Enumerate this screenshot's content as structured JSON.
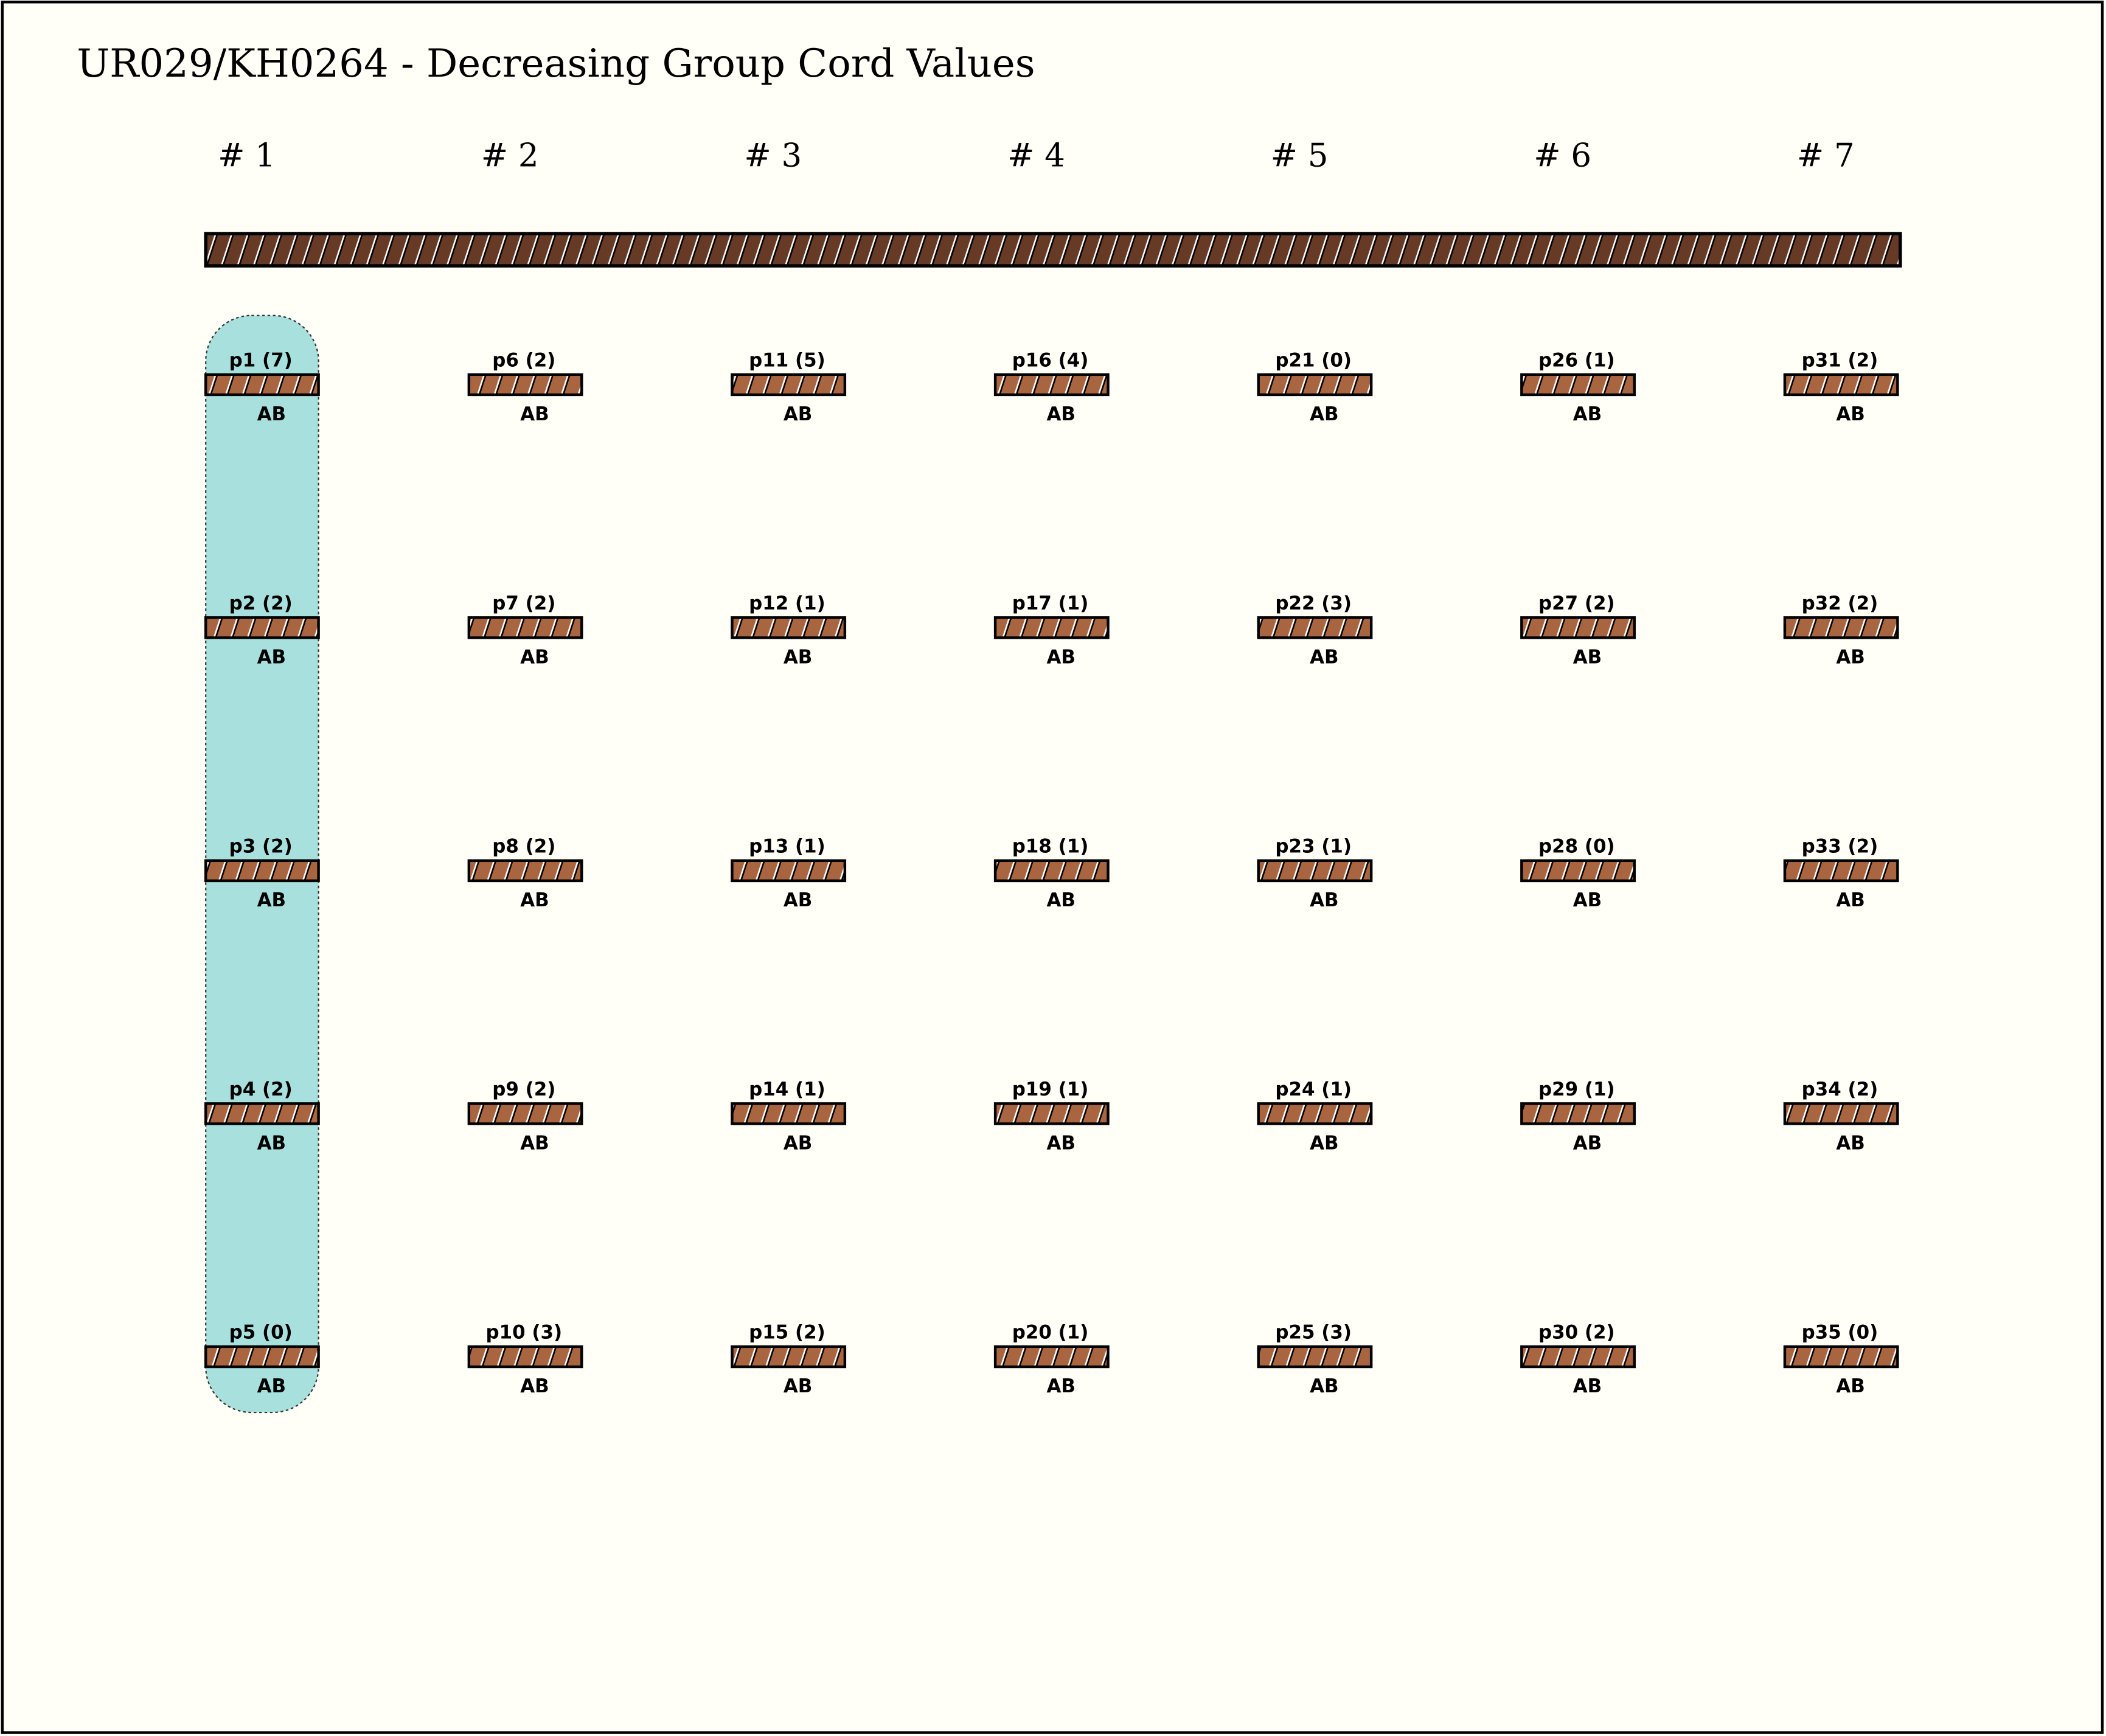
{
  "title": "UR029/KH0264 - Decreasing Group Cord Values",
  "colors": {
    "background": "#fffef7",
    "main_cord": "#663a24",
    "pendant_cord": "#a9653f",
    "highlight": "#a8e0de"
  },
  "highlighted_group": 1,
  "groups": [
    {
      "label": "# 1",
      "pendants": [
        {
          "name": "p1 (7)",
          "knot": "AB"
        },
        {
          "name": "p2 (2)",
          "knot": "AB"
        },
        {
          "name": "p3 (2)",
          "knot": "AB"
        },
        {
          "name": "p4 (2)",
          "knot": "AB"
        },
        {
          "name": "p5 (0)",
          "knot": "AB"
        }
      ]
    },
    {
      "label": "# 2",
      "pendants": [
        {
          "name": "p6 (2)",
          "knot": "AB"
        },
        {
          "name": "p7 (2)",
          "knot": "AB"
        },
        {
          "name": "p8 (2)",
          "knot": "AB"
        },
        {
          "name": "p9 (2)",
          "knot": "AB"
        },
        {
          "name": "p10 (3)",
          "knot": "AB"
        }
      ]
    },
    {
      "label": "# 3",
      "pendants": [
        {
          "name": "p11 (5)",
          "knot": "AB"
        },
        {
          "name": "p12 (1)",
          "knot": "AB"
        },
        {
          "name": "p13 (1)",
          "knot": "AB"
        },
        {
          "name": "p14 (1)",
          "knot": "AB"
        },
        {
          "name": "p15 (2)",
          "knot": "AB"
        }
      ]
    },
    {
      "label": "# 4",
      "pendants": [
        {
          "name": "p16 (4)",
          "knot": "AB"
        },
        {
          "name": "p17 (1)",
          "knot": "AB"
        },
        {
          "name": "p18 (1)",
          "knot": "AB"
        },
        {
          "name": "p19 (1)",
          "knot": "AB"
        },
        {
          "name": "p20 (1)",
          "knot": "AB"
        }
      ]
    },
    {
      "label": "# 5",
      "pendants": [
        {
          "name": "p21 (0)",
          "knot": "AB"
        },
        {
          "name": "p22 (3)",
          "knot": "AB"
        },
        {
          "name": "p23 (1)",
          "knot": "AB"
        },
        {
          "name": "p24 (1)",
          "knot": "AB"
        },
        {
          "name": "p25 (3)",
          "knot": "AB"
        }
      ]
    },
    {
      "label": "# 6",
      "pendants": [
        {
          "name": "p26 (1)",
          "knot": "AB"
        },
        {
          "name": "p27 (2)",
          "knot": "AB"
        },
        {
          "name": "p28 (0)",
          "knot": "AB"
        },
        {
          "name": "p29 (1)",
          "knot": "AB"
        },
        {
          "name": "p30 (2)",
          "knot": "AB"
        }
      ]
    },
    {
      "label": "# 7",
      "pendants": [
        {
          "name": "p31 (2)",
          "knot": "AB"
        },
        {
          "name": "p32 (2)",
          "knot": "AB"
        },
        {
          "name": "p33 (2)",
          "knot": "AB"
        },
        {
          "name": "p34 (2)",
          "knot": "AB"
        },
        {
          "name": "p35 (0)",
          "knot": "AB"
        }
      ]
    }
  ]
}
